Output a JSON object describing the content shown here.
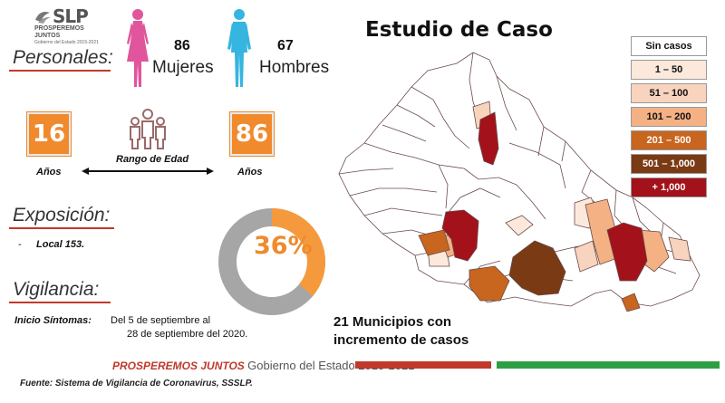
{
  "logo": {
    "main": "SLP",
    "sub": "PROSPEREMOS JUNTOS",
    "sub2": "Gobierno del Estado 2015-2021"
  },
  "title": "Estudio de Caso",
  "personales": {
    "label": "Personales:",
    "mujeres_count": "86",
    "mujeres_label": "Mujeres",
    "hombres_count": "67",
    "hombres_label": "Hombres",
    "age_min": "16",
    "age_max": "86",
    "age_unit_left": "Años",
    "age_unit_right": "Años",
    "age_range_label": "Rango de Edad"
  },
  "exposicion": {
    "label": "Exposición:",
    "bullet": "-",
    "item": "Local 153."
  },
  "vigilancia": {
    "label": "Vigilancia:",
    "inicio_label": "Inicio Síntomas:",
    "inicio_line1": "Del 5 de septiembre al",
    "inicio_line2": "28 de septiembre del 2020."
  },
  "donut": {
    "percent_text": "36%",
    "percent_value": 36,
    "color_fill": "#f59a3c",
    "color_rest": "#a6a6a6"
  },
  "legend": [
    {
      "label": "Sin casos",
      "color": "#ffffff",
      "text_color": "#111111"
    },
    {
      "label": "1 – 50",
      "color": "#fde9dc",
      "text_color": "#111111"
    },
    {
      "label": "51 – 100",
      "color": "#f8d3bd",
      "text_color": "#111111"
    },
    {
      "label": "101 – 200",
      "color": "#f3b184",
      "text_color": "#111111"
    },
    {
      "label": "201 – 500",
      "color": "#c8651e",
      "text_color": "#ffffff"
    },
    {
      "label": "501 – 1,000",
      "color": "#7a3a14",
      "text_color": "#ffffff"
    },
    {
      "label": "+ 1,000",
      "color": "#a3121a",
      "text_color": "#ffffff"
    }
  ],
  "municipios": {
    "line1": "21  Municipios con",
    "line2": "incremento de casos"
  },
  "footer": {
    "brand_bold": "PROSPEREMOS JUNTOS",
    "brand_rest": "Gobierno del Estado 2015-2021",
    "source": "Fuente: Sistema de Vigilancia de Coronavirus, SSSLP.",
    "bar_colors": [
      "#c0392b",
      "#ffffff",
      "#2e9e44"
    ]
  }
}
